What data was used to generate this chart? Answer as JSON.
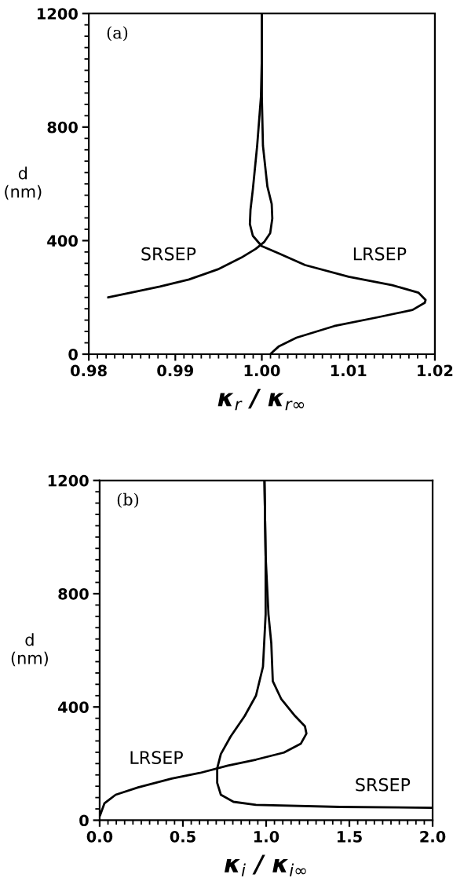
{
  "chart_data": [
    {
      "type": "line",
      "xlabel": "κ$_{r}$ / κ$_{r∞}$",
      "ylabel": "d\n(nm)",
      "xlim": [
        0.98,
        1.02
      ],
      "ylim": [
        0,
        1200
      ],
      "xticks": [
        0.98,
        0.99,
        {
          "value": 1.0,
          "label": "1.00"
        },
        1.01,
        1.02
      ],
      "yticks": [
        0,
        400,
        800,
        1200
      ],
      "grid": false,
      "marker": "none",
      "line_style": "solid",
      "series": [
        {
          "color": "#000000",
          "x": [
            1.00097,
            1.00198,
            1.004,
            1.00836,
            1.01339,
            1.01742,
            1.01883,
            1.01893,
            1.01809,
            1.01507,
            1.01003,
            1.005,
            1.00198,
            0.99997,
            0.99896,
            0.99862,
            0.99869,
            0.99896,
            0.99946,
            0.9999,
            1.0,
            1.0
          ],
          "values": [
            0,
            28,
            58,
            99,
            130,
            156,
            181,
            191,
            217,
            243,
            273,
            314,
            355,
            381,
            417,
            458,
            509,
            580,
            734,
            908,
            1041,
            1200
          ]
        },
        {
          "color": "#000000",
          "x": [
            0.98225,
            0.98487,
            0.98822,
            0.99158,
            0.99493,
            0.99762,
            0.9993,
            1.0003,
            1.00097,
            1.00121,
            1.00114,
            1.00064,
            1.00013,
            1.0,
            1.0
          ],
          "values": [
            200,
            217,
            238,
            263,
            299,
            340,
            371,
            396,
            427,
            478,
            529,
            591,
            734,
            908,
            1200
          ]
        }
      ],
      "annotations": [
        "(a)",
        "SRSEP",
        "LRSEP"
      ]
    },
    {
      "type": "line",
      "xlabel": "κ$_{i}$ / κ$_{i∞}$",
      "ylabel": "d\n(nm)",
      "xlim": [
        0.0,
        2.0
      ],
      "ylim": [
        0,
        1200
      ],
      "xticks": [
        {
          "value": 0.0,
          "label": "0.0"
        },
        0.5,
        {
          "value": 1.0,
          "label": "1.0"
        },
        1.5,
        {
          "value": 2.0,
          "label": "2.0"
        }
      ],
      "yticks": [
        0,
        400,
        800,
        1200
      ],
      "grid": false,
      "marker": "none",
      "line_style": "solid",
      "series": [
        {
          "color": "#000000",
          "x": [
            0.003,
            0.029,
            0.096,
            0.231,
            0.433,
            0.602,
            0.77,
            0.939,
            1.107,
            1.208,
            1.242,
            1.233,
            1.174,
            1.09,
            1.04,
            1.031,
            1.014,
            0.997,
            0.99
          ],
          "values": [
            18,
            60,
            90,
            116,
            147,
            167,
            193,
            214,
            239,
            270,
            306,
            332,
            368,
            429,
            491,
            625,
            727,
            933,
            1200
          ]
        },
        {
          "color": "#000000",
          "x": [
            2.0,
            1.444,
            0.939,
            0.804,
            0.728,
            0.706,
            0.706,
            0.728,
            0.787,
            0.871,
            0.939,
            0.981,
            0.997,
            0.997,
            0.99
          ],
          "values": [
            44,
            47,
            54,
            65,
            90,
            132,
            183,
            234,
            296,
            368,
            440,
            542,
            727,
            933,
            1200
          ]
        }
      ],
      "annotations": [
        "(b)",
        "LRSEP",
        "SRSEP"
      ]
    }
  ]
}
